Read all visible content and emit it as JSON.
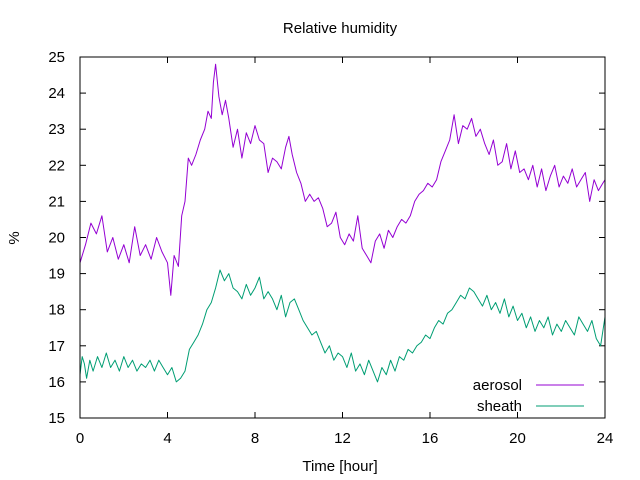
{
  "chart_data": {
    "type": "line",
    "title": "Relative humidity",
    "xlabel": "Time [hour]",
    "ylabel": "%",
    "xlim": [
      0,
      24
    ],
    "ylim": [
      15,
      25
    ],
    "xticks": [
      0,
      4,
      8,
      12,
      16,
      20,
      24
    ],
    "yticks": [
      15,
      16,
      17,
      18,
      19,
      20,
      21,
      22,
      23,
      24,
      25
    ],
    "grid": false,
    "legend_position": "bottom-right",
    "series": [
      {
        "name": "aerosol",
        "color": "#9400d3",
        "points": [
          [
            0.0,
            19.3
          ],
          [
            0.25,
            19.8
          ],
          [
            0.5,
            20.4
          ],
          [
            0.75,
            20.1
          ],
          [
            1.0,
            20.6
          ],
          [
            1.25,
            19.6
          ],
          [
            1.5,
            20.0
          ],
          [
            1.75,
            19.4
          ],
          [
            2.0,
            19.8
          ],
          [
            2.25,
            19.3
          ],
          [
            2.5,
            20.3
          ],
          [
            2.75,
            19.5
          ],
          [
            3.0,
            19.8
          ],
          [
            3.25,
            19.4
          ],
          [
            3.5,
            20.0
          ],
          [
            3.75,
            19.6
          ],
          [
            4.0,
            19.3
          ],
          [
            4.15,
            18.4
          ],
          [
            4.3,
            19.5
          ],
          [
            4.5,
            19.2
          ],
          [
            4.65,
            20.6
          ],
          [
            4.8,
            21.0
          ],
          [
            4.95,
            22.2
          ],
          [
            5.1,
            22.0
          ],
          [
            5.3,
            22.3
          ],
          [
            5.5,
            22.7
          ],
          [
            5.7,
            23.0
          ],
          [
            5.85,
            23.5
          ],
          [
            6.0,
            23.3
          ],
          [
            6.1,
            24.3
          ],
          [
            6.2,
            24.8
          ],
          [
            6.35,
            23.9
          ],
          [
            6.5,
            23.4
          ],
          [
            6.65,
            23.8
          ],
          [
            6.8,
            23.3
          ],
          [
            7.0,
            22.5
          ],
          [
            7.2,
            23.0
          ],
          [
            7.4,
            22.2
          ],
          [
            7.6,
            22.9
          ],
          [
            7.8,
            22.6
          ],
          [
            8.0,
            23.1
          ],
          [
            8.2,
            22.7
          ],
          [
            8.4,
            22.6
          ],
          [
            8.6,
            21.8
          ],
          [
            8.8,
            22.2
          ],
          [
            9.0,
            22.1
          ],
          [
            9.2,
            21.9
          ],
          [
            9.4,
            22.5
          ],
          [
            9.55,
            22.8
          ],
          [
            9.7,
            22.3
          ],
          [
            9.9,
            21.8
          ],
          [
            10.1,
            21.5
          ],
          [
            10.3,
            21.0
          ],
          [
            10.5,
            21.2
          ],
          [
            10.7,
            21.0
          ],
          [
            10.9,
            21.1
          ],
          [
            11.1,
            20.8
          ],
          [
            11.3,
            20.3
          ],
          [
            11.5,
            20.4
          ],
          [
            11.7,
            20.7
          ],
          [
            11.9,
            20.0
          ],
          [
            12.1,
            19.8
          ],
          [
            12.3,
            20.1
          ],
          [
            12.5,
            19.9
          ],
          [
            12.7,
            20.6
          ],
          [
            12.9,
            19.7
          ],
          [
            13.1,
            19.5
          ],
          [
            13.3,
            19.3
          ],
          [
            13.5,
            19.9
          ],
          [
            13.7,
            20.1
          ],
          [
            13.9,
            19.7
          ],
          [
            14.1,
            20.2
          ],
          [
            14.3,
            20.0
          ],
          [
            14.5,
            20.3
          ],
          [
            14.7,
            20.5
          ],
          [
            14.9,
            20.4
          ],
          [
            15.1,
            20.6
          ],
          [
            15.3,
            21.0
          ],
          [
            15.5,
            21.2
          ],
          [
            15.7,
            21.3
          ],
          [
            15.9,
            21.5
          ],
          [
            16.1,
            21.4
          ],
          [
            16.3,
            21.6
          ],
          [
            16.5,
            22.1
          ],
          [
            16.7,
            22.4
          ],
          [
            16.9,
            22.7
          ],
          [
            17.1,
            23.4
          ],
          [
            17.3,
            22.6
          ],
          [
            17.5,
            23.1
          ],
          [
            17.7,
            23.0
          ],
          [
            17.9,
            23.3
          ],
          [
            18.1,
            22.8
          ],
          [
            18.3,
            23.0
          ],
          [
            18.5,
            22.6
          ],
          [
            18.7,
            22.3
          ],
          [
            18.9,
            22.7
          ],
          [
            19.1,
            22.0
          ],
          [
            19.3,
            22.1
          ],
          [
            19.5,
            22.6
          ],
          [
            19.7,
            21.9
          ],
          [
            19.9,
            22.4
          ],
          [
            20.1,
            21.8
          ],
          [
            20.3,
            21.9
          ],
          [
            20.5,
            21.6
          ],
          [
            20.7,
            22.0
          ],
          [
            20.9,
            21.4
          ],
          [
            21.1,
            21.9
          ],
          [
            21.3,
            21.3
          ],
          [
            21.5,
            21.7
          ],
          [
            21.7,
            22.0
          ],
          [
            21.9,
            21.4
          ],
          [
            22.1,
            21.7
          ],
          [
            22.3,
            21.5
          ],
          [
            22.5,
            21.9
          ],
          [
            22.7,
            21.4
          ],
          [
            22.9,
            21.6
          ],
          [
            23.1,
            21.8
          ],
          [
            23.3,
            21.0
          ],
          [
            23.5,
            21.6
          ],
          [
            23.7,
            21.3
          ],
          [
            23.9,
            21.5
          ],
          [
            24.0,
            21.6
          ]
        ]
      },
      {
        "name": "sheath",
        "color": "#009e73",
        "points": [
          [
            0.0,
            16.2
          ],
          [
            0.1,
            16.7
          ],
          [
            0.2,
            16.5
          ],
          [
            0.3,
            16.1
          ],
          [
            0.45,
            16.6
          ],
          [
            0.6,
            16.3
          ],
          [
            0.8,
            16.7
          ],
          [
            1.0,
            16.4
          ],
          [
            1.2,
            16.8
          ],
          [
            1.4,
            16.4
          ],
          [
            1.6,
            16.6
          ],
          [
            1.8,
            16.3
          ],
          [
            2.0,
            16.7
          ],
          [
            2.2,
            16.4
          ],
          [
            2.4,
            16.6
          ],
          [
            2.6,
            16.3
          ],
          [
            2.8,
            16.5
          ],
          [
            3.0,
            16.4
          ],
          [
            3.2,
            16.6
          ],
          [
            3.4,
            16.3
          ],
          [
            3.6,
            16.6
          ],
          [
            3.8,
            16.4
          ],
          [
            4.0,
            16.2
          ],
          [
            4.2,
            16.4
          ],
          [
            4.4,
            16.0
          ],
          [
            4.6,
            16.1
          ],
          [
            4.8,
            16.3
          ],
          [
            5.0,
            16.9
          ],
          [
            5.2,
            17.1
          ],
          [
            5.4,
            17.3
          ],
          [
            5.6,
            17.6
          ],
          [
            5.8,
            18.0
          ],
          [
            6.0,
            18.2
          ],
          [
            6.2,
            18.6
          ],
          [
            6.4,
            19.1
          ],
          [
            6.6,
            18.8
          ],
          [
            6.8,
            19.0
          ],
          [
            7.0,
            18.6
          ],
          [
            7.2,
            18.5
          ],
          [
            7.4,
            18.3
          ],
          [
            7.6,
            18.7
          ],
          [
            7.8,
            18.4
          ],
          [
            8.0,
            18.6
          ],
          [
            8.2,
            18.9
          ],
          [
            8.4,
            18.3
          ],
          [
            8.6,
            18.5
          ],
          [
            8.8,
            18.3
          ],
          [
            9.0,
            18.0
          ],
          [
            9.2,
            18.4
          ],
          [
            9.4,
            17.8
          ],
          [
            9.6,
            18.2
          ],
          [
            9.8,
            18.3
          ],
          [
            10.0,
            18.0
          ],
          [
            10.2,
            17.7
          ],
          [
            10.4,
            17.5
          ],
          [
            10.6,
            17.3
          ],
          [
            10.8,
            17.4
          ],
          [
            11.0,
            17.1
          ],
          [
            11.2,
            16.8
          ],
          [
            11.4,
            17.0
          ],
          [
            11.6,
            16.6
          ],
          [
            11.8,
            16.8
          ],
          [
            12.0,
            16.7
          ],
          [
            12.2,
            16.4
          ],
          [
            12.4,
            16.8
          ],
          [
            12.6,
            16.3
          ],
          [
            12.8,
            16.5
          ],
          [
            13.0,
            16.2
          ],
          [
            13.2,
            16.6
          ],
          [
            13.4,
            16.3
          ],
          [
            13.6,
            16.0
          ],
          [
            13.8,
            16.4
          ],
          [
            14.0,
            16.2
          ],
          [
            14.2,
            16.6
          ],
          [
            14.4,
            16.3
          ],
          [
            14.6,
            16.7
          ],
          [
            14.8,
            16.6
          ],
          [
            15.0,
            16.9
          ],
          [
            15.2,
            16.8
          ],
          [
            15.4,
            17.0
          ],
          [
            15.6,
            17.1
          ],
          [
            15.8,
            17.3
          ],
          [
            16.0,
            17.2
          ],
          [
            16.2,
            17.5
          ],
          [
            16.4,
            17.7
          ],
          [
            16.6,
            17.6
          ],
          [
            16.8,
            17.9
          ],
          [
            17.0,
            18.0
          ],
          [
            17.2,
            18.2
          ],
          [
            17.4,
            18.4
          ],
          [
            17.6,
            18.3
          ],
          [
            17.8,
            18.6
          ],
          [
            18.0,
            18.5
          ],
          [
            18.2,
            18.3
          ],
          [
            18.4,
            18.1
          ],
          [
            18.6,
            18.4
          ],
          [
            18.8,
            18.0
          ],
          [
            19.0,
            18.2
          ],
          [
            19.2,
            17.9
          ],
          [
            19.4,
            18.3
          ],
          [
            19.6,
            17.8
          ],
          [
            19.8,
            18.1
          ],
          [
            20.0,
            17.7
          ],
          [
            20.2,
            17.9
          ],
          [
            20.4,
            17.5
          ],
          [
            20.6,
            17.8
          ],
          [
            20.8,
            17.4
          ],
          [
            21.0,
            17.7
          ],
          [
            21.2,
            17.5
          ],
          [
            21.4,
            17.8
          ],
          [
            21.6,
            17.3
          ],
          [
            21.8,
            17.6
          ],
          [
            22.0,
            17.4
          ],
          [
            22.2,
            17.7
          ],
          [
            22.4,
            17.5
          ],
          [
            22.6,
            17.3
          ],
          [
            22.8,
            17.8
          ],
          [
            23.0,
            17.6
          ],
          [
            23.2,
            17.4
          ],
          [
            23.4,
            17.7
          ],
          [
            23.6,
            17.2
          ],
          [
            23.8,
            17.0
          ],
          [
            24.0,
            17.8
          ]
        ]
      }
    ]
  }
}
